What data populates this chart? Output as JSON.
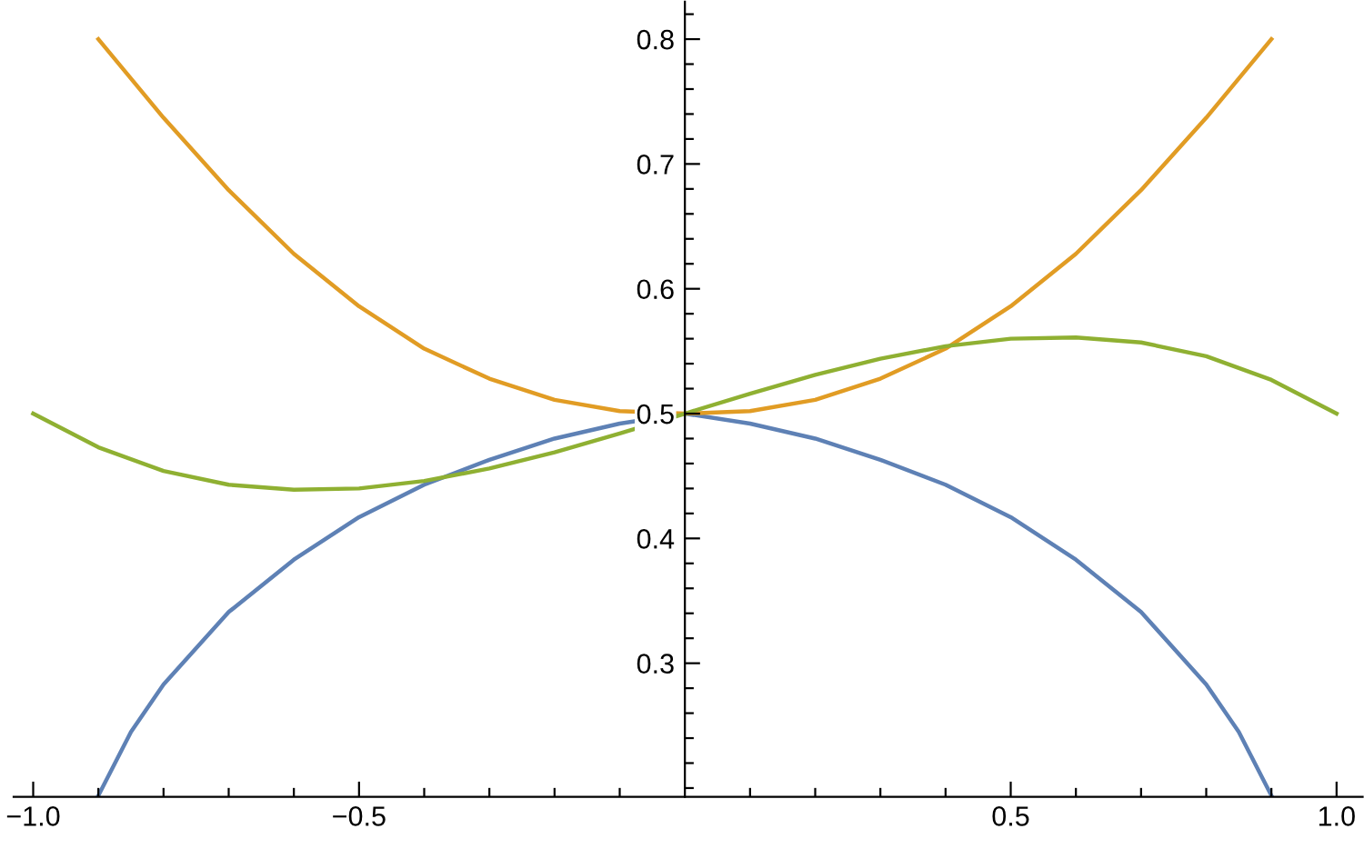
{
  "chart_data": {
    "type": "line",
    "x": [
      -1.0,
      -0.9,
      -0.8,
      -0.7,
      -0.6,
      -0.5,
      -0.4,
      -0.3,
      -0.2,
      -0.1,
      0.0,
      0.1,
      0.2,
      0.3,
      0.4,
      0.5,
      0.6,
      0.7,
      0.8,
      0.9,
      1.0
    ],
    "series": [
      {
        "color": "#5e81b5",
        "x": [
          -0.9,
          -0.85,
          -0.8,
          -0.7,
          -0.6,
          -0.5,
          -0.4,
          -0.3,
          -0.2,
          -0.1,
          0.0,
          0.1,
          0.2,
          0.3,
          0.4,
          0.5,
          0.6,
          0.7,
          0.8,
          0.85,
          0.9
        ],
        "values": [
          0.194,
          0.245,
          0.283,
          0.341,
          0.383,
          0.417,
          0.443,
          0.463,
          0.48,
          0.492,
          0.5,
          0.492,
          0.48,
          0.463,
          0.443,
          0.417,
          0.383,
          0.341,
          0.283,
          0.245,
          0.194
        ]
      },
      {
        "color": "#e19c24",
        "x": [
          -0.9,
          -0.8,
          -0.7,
          -0.6,
          -0.5,
          -0.4,
          -0.3,
          -0.2,
          -0.1,
          0.0,
          0.1,
          0.2,
          0.3,
          0.4,
          0.5,
          0.6,
          0.7,
          0.8,
          0.9
        ],
        "values": [
          0.8,
          0.737,
          0.679,
          0.628,
          0.586,
          0.552,
          0.528,
          0.511,
          0.502,
          0.5,
          0.502,
          0.511,
          0.528,
          0.552,
          0.586,
          0.628,
          0.679,
          0.737,
          0.8
        ]
      },
      {
        "color": "#8fb032",
        "values": [
          0.5,
          0.473,
          0.454,
          0.443,
          0.439,
          0.44,
          0.446,
          0.456,
          0.469,
          0.484,
          0.5,
          0.516,
          0.531,
          0.544,
          0.554,
          0.56,
          0.561,
          0.557,
          0.546,
          0.527,
          0.5
        ]
      }
    ],
    "xlim": [
      -1.03,
      1.04
    ],
    "ylim": [
      0.193,
      0.83
    ],
    "xticks": [
      {
        "value": -1.0,
        "label": "−1.0"
      },
      {
        "value": -0.9,
        "label": null
      },
      {
        "value": -0.8,
        "label": null
      },
      {
        "value": -0.7,
        "label": null
      },
      {
        "value": -0.6,
        "label": null
      },
      {
        "value": -0.5,
        "label": "−0.5"
      },
      {
        "value": -0.4,
        "label": null
      },
      {
        "value": -0.3,
        "label": null
      },
      {
        "value": -0.2,
        "label": null
      },
      {
        "value": -0.1,
        "label": null
      },
      {
        "value": 0.1,
        "label": null
      },
      {
        "value": 0.2,
        "label": null
      },
      {
        "value": 0.3,
        "label": null
      },
      {
        "value": 0.4,
        "label": null
      },
      {
        "value": 0.5,
        "label": "0.5"
      },
      {
        "value": 0.6,
        "label": null
      },
      {
        "value": 0.7,
        "label": null
      },
      {
        "value": 0.8,
        "label": null
      },
      {
        "value": 0.9,
        "label": null
      },
      {
        "value": 1.0,
        "label": "1.0"
      }
    ],
    "yticks": [
      {
        "value": 0.2,
        "label": null
      },
      {
        "value": 0.22,
        "label": null
      },
      {
        "value": 0.24,
        "label": null
      },
      {
        "value": 0.26,
        "label": null
      },
      {
        "value": 0.28,
        "label": null
      },
      {
        "value": 0.3,
        "label": "0.3"
      },
      {
        "value": 0.32,
        "label": null
      },
      {
        "value": 0.34,
        "label": null
      },
      {
        "value": 0.36,
        "label": null
      },
      {
        "value": 0.38,
        "label": null
      },
      {
        "value": 0.4,
        "label": "0.4"
      },
      {
        "value": 0.42,
        "label": null
      },
      {
        "value": 0.44,
        "label": null
      },
      {
        "value": 0.46,
        "label": null
      },
      {
        "value": 0.48,
        "label": null
      },
      {
        "value": 0.5,
        "label": "0.5"
      },
      {
        "value": 0.52,
        "label": null
      },
      {
        "value": 0.54,
        "label": null
      },
      {
        "value": 0.56,
        "label": null
      },
      {
        "value": 0.58,
        "label": null
      },
      {
        "value": 0.6,
        "label": "0.6"
      },
      {
        "value": 0.62,
        "label": null
      },
      {
        "value": 0.64,
        "label": null
      },
      {
        "value": 0.66,
        "label": null
      },
      {
        "value": 0.68,
        "label": null
      },
      {
        "value": 0.7,
        "label": "0.7"
      },
      {
        "value": 0.72,
        "label": null
      },
      {
        "value": 0.74,
        "label": null
      },
      {
        "value": 0.76,
        "label": null
      },
      {
        "value": 0.78,
        "label": null
      },
      {
        "value": 0.8,
        "label": "0.8"
      },
      {
        "value": 0.82,
        "label": null
      }
    ],
    "grid": false,
    "marker": "none",
    "line_style": "solid"
  }
}
